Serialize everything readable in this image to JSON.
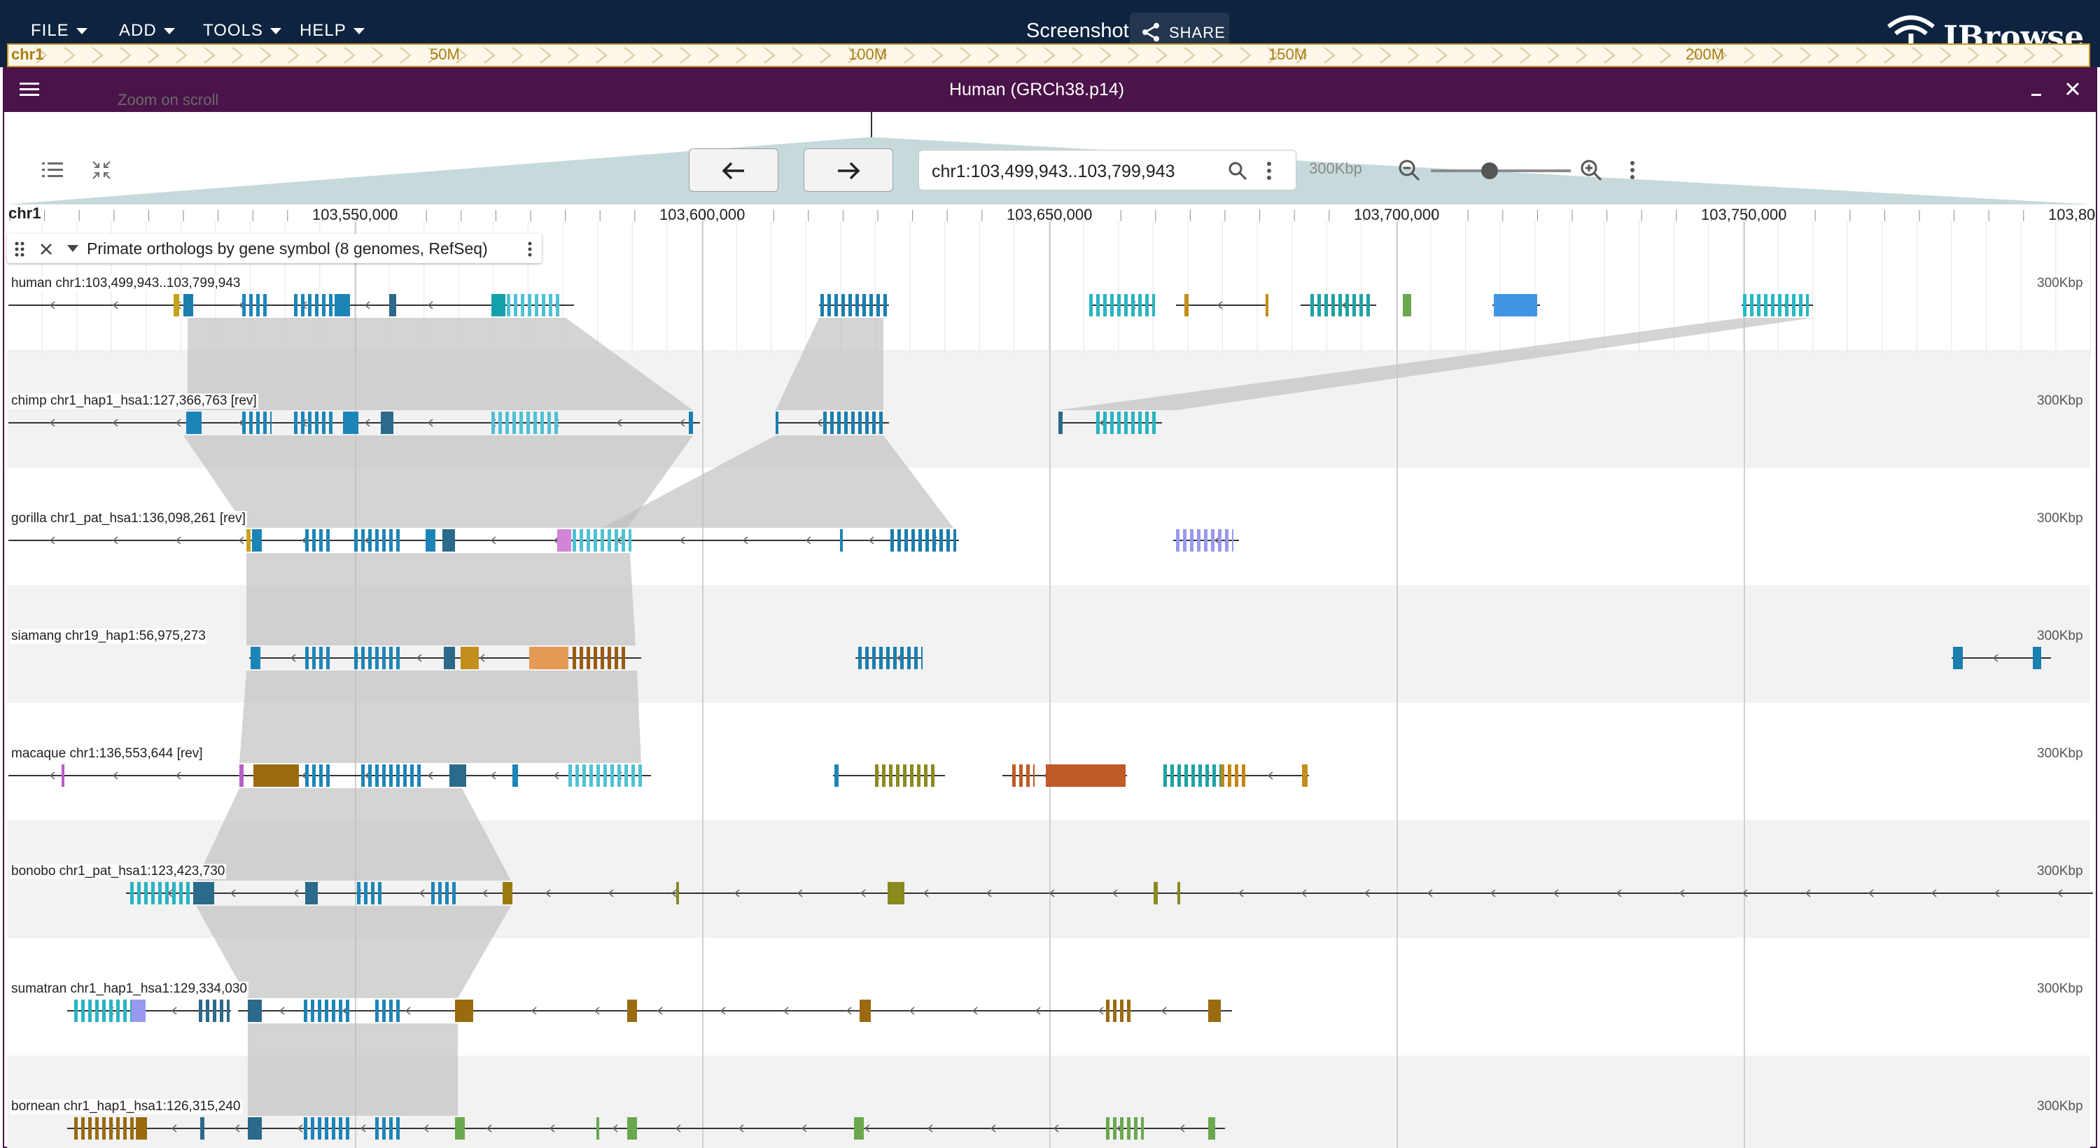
{
  "menus": [
    "FILE",
    "ADD",
    "TOOLS",
    "HELP"
  ],
  "session": {
    "title": "Screenshot",
    "share_label": "SHARE"
  },
  "app": {
    "logo_text": "JBrowse"
  },
  "view": {
    "title": "Human (GRCh38.p14)"
  },
  "overview": {
    "chr": "chr1",
    "labels": [
      "50M",
      "100M",
      "150M",
      "200M"
    ]
  },
  "toolbar": {
    "zoom_on_scroll": "Zoom on scroll",
    "location": "chr1:103,499,943..103,799,943",
    "zoom_level": "300Kbp"
  },
  "ruler": {
    "chr": "chr1",
    "ticks": [
      "103,550,000",
      "103,600,000",
      "103,650,000",
      "103,700,000",
      "103,750,000",
      "103,80"
    ]
  },
  "track": {
    "name": "Primate orthologs by gene symbol (8 genomes, RefSeq)"
  },
  "rows": [
    {
      "label": "human chr1:103,499,943..103,799,943",
      "scale": "300Kbp"
    },
    {
      "label": "chimp chr1_hap1_hsa1:127,366,763 [rev]",
      "scale": "300Kbp"
    },
    {
      "label": "gorilla chr1_pat_hsa1:136,098,261 [rev]",
      "scale": "300Kbp"
    },
    {
      "label": "siamang chr19_hap1:56,975,273",
      "scale": "300Kbp"
    },
    {
      "label": "macaque chr1:136,553,644 [rev]",
      "scale": "300Kbp"
    },
    {
      "label": "bonobo chr1_pat_hsa1:123,423,730",
      "scale": "300Kbp"
    },
    {
      "label": "sumatran chr1_hap1_hsa1:129,334,030",
      "scale": "300Kbp"
    },
    {
      "label": "bornean chr1_hap1_hsa1:126,315,240",
      "scale": "300Kbp"
    }
  ],
  "colors": {
    "topbar": "#0d233f",
    "view_header": "#4a1349",
    "overview": "#c79a20"
  }
}
